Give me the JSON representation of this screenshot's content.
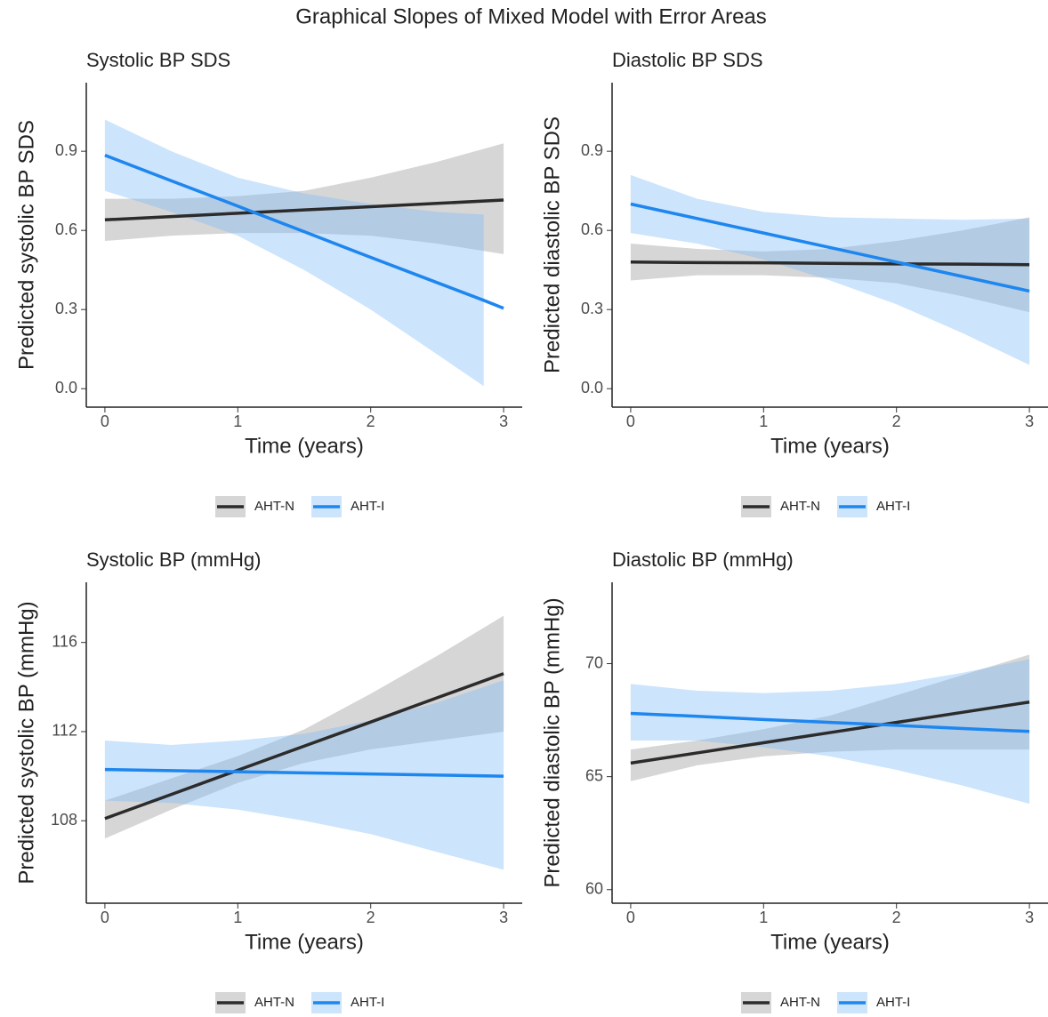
{
  "title": "Graphical Slopes of Mixed Model with Error Areas",
  "chart_data": [
    {
      "type": "line",
      "title": "Systolic BP SDS",
      "xlabel": "Time (years)",
      "ylabel": "Predicted systolic BP SDS",
      "xlim": [
        -0.14,
        3.14
      ],
      "ylim": [
        -0.07,
        1.16
      ],
      "xticks": [
        0,
        1,
        2,
        3
      ],
      "yticks": [
        {
          "value": 0,
          "label": "0.0"
        },
        0.3,
        0.6,
        0.9
      ],
      "legend": "bottom",
      "series": [
        {
          "name": "AHT-N",
          "color": "#2b2b2b",
          "fill": "#999999",
          "x": [
            0,
            0.5,
            1,
            1.5,
            2,
            2.5,
            3
          ],
          "values": [
            0.64,
            0.6525,
            0.665,
            0.6775,
            0.69,
            0.7025,
            0.715
          ],
          "lower": [
            0.56,
            0.58,
            0.59,
            0.59,
            0.58,
            0.55,
            0.51
          ],
          "upper": [
            0.72,
            0.72,
            0.73,
            0.75,
            0.8,
            0.86,
            0.93
          ]
        },
        {
          "name": "AHT-I",
          "color": "#1e86ef",
          "fill": "#80bbf8",
          "x": [
            0,
            0.5,
            1,
            1.5,
            2,
            2.5,
            2.85,
            3
          ],
          "values": [
            0.885,
            0.788,
            0.692,
            0.595,
            0.498,
            0.402,
            0.335,
            0.305
          ],
          "lower": [
            0.75,
            0.67,
            0.58,
            0.45,
            0.3,
            0.13,
            0.01,
            null
          ],
          "upper": [
            1.02,
            0.9,
            0.8,
            0.74,
            0.7,
            0.67,
            0.66,
            null
          ]
        }
      ]
    },
    {
      "type": "line",
      "title": "Diastolic BP SDS",
      "xlabel": "Time (years)",
      "ylabel": "Predicted diastolic BP SDS",
      "xlim": [
        -0.14,
        3.14
      ],
      "ylim": [
        -0.07,
        1.16
      ],
      "xticks": [
        0,
        1,
        2,
        3
      ],
      "yticks": [
        {
          "value": 0,
          "label": "0.0"
        },
        0.3,
        0.6,
        0.9
      ],
      "legend": "bottom",
      "series": [
        {
          "name": "AHT-N",
          "color": "#2b2b2b",
          "fill": "#999999",
          "x": [
            0,
            0.5,
            1,
            1.5,
            2,
            2.5,
            3
          ],
          "values": [
            0.48,
            0.478,
            0.477,
            0.475,
            0.473,
            0.472,
            0.47
          ],
          "lower": [
            0.41,
            0.43,
            0.43,
            0.42,
            0.4,
            0.35,
            0.29
          ],
          "upper": [
            0.55,
            0.53,
            0.52,
            0.53,
            0.56,
            0.6,
            0.65
          ]
        },
        {
          "name": "AHT-I",
          "color": "#1e86ef",
          "fill": "#80bbf8",
          "x": [
            0,
            0.5,
            1,
            1.5,
            2,
            2.5,
            3
          ],
          "values": [
            0.7,
            0.645,
            0.59,
            0.535,
            0.48,
            0.425,
            0.37
          ],
          "lower": [
            0.59,
            0.55,
            0.49,
            0.41,
            0.32,
            0.21,
            0.09
          ],
          "upper": [
            0.81,
            0.72,
            0.67,
            0.65,
            0.645,
            0.64,
            0.645
          ]
        }
      ]
    },
    {
      "type": "line",
      "title": "Systolic BP (mmHg)",
      "xlabel": "Time (years)",
      "ylabel": "Predicted systolic BP (mmHg)",
      "xlim": [
        -0.14,
        3.14
      ],
      "ylim": [
        104.3,
        118.7
      ],
      "xticks": [
        0,
        1,
        2,
        3
      ],
      "yticks": [
        108,
        112,
        116
      ],
      "legend": "bottom",
      "series": [
        {
          "name": "AHT-N",
          "color": "#2b2b2b",
          "fill": "#999999",
          "x": [
            0,
            0.5,
            1,
            1.5,
            2,
            2.5,
            3
          ],
          "values": [
            108.1,
            109.18,
            110.27,
            111.35,
            112.43,
            113.52,
            114.6
          ],
          "lower": [
            107.2,
            108.5,
            109.7,
            110.6,
            111.2,
            111.6,
            112.0
          ],
          "upper": [
            108.9,
            109.9,
            110.9,
            112.1,
            113.7,
            115.4,
            117.2
          ]
        },
        {
          "name": "AHT-I",
          "color": "#1e86ef",
          "fill": "#80bbf8",
          "x": [
            0,
            0.5,
            1,
            1.5,
            2,
            2.5,
            3
          ],
          "values": [
            110.3,
            110.25,
            110.2,
            110.15,
            110.1,
            110.05,
            110.0
          ],
          "lower": [
            108.9,
            108.8,
            108.5,
            108.0,
            107.4,
            106.6,
            105.8
          ],
          "upper": [
            111.6,
            111.4,
            111.6,
            111.9,
            112.5,
            113.3,
            114.3
          ]
        }
      ]
    },
    {
      "type": "line",
      "title": "Diastolic BP (mmHg)",
      "xlabel": "Time (years)",
      "ylabel": "Predicted diastolic BP (mmHg)",
      "xlim": [
        -0.14,
        3.14
      ],
      "ylim": [
        59.4,
        73.6
      ],
      "xticks": [
        0,
        1,
        2,
        3
      ],
      "yticks": [
        60,
        65,
        70
      ],
      "legend": "bottom",
      "series": [
        {
          "name": "AHT-N",
          "color": "#2b2b2b",
          "fill": "#999999",
          "x": [
            0,
            0.5,
            1,
            1.5,
            2,
            2.5,
            3
          ],
          "values": [
            65.6,
            66.05,
            66.5,
            66.95,
            67.4,
            67.85,
            68.3
          ],
          "lower": [
            64.8,
            65.5,
            65.9,
            66.1,
            66.2,
            66.2,
            66.2
          ],
          "upper": [
            66.2,
            66.6,
            67.1,
            67.7,
            68.6,
            69.5,
            70.4
          ]
        },
        {
          "name": "AHT-I",
          "color": "#1e86ef",
          "fill": "#80bbf8",
          "x": [
            0,
            0.5,
            1,
            1.5,
            2,
            2.5,
            3
          ],
          "values": [
            67.8,
            67.67,
            67.53,
            67.4,
            67.27,
            67.13,
            67.0
          ],
          "lower": [
            66.6,
            66.6,
            66.3,
            65.9,
            65.3,
            64.6,
            63.8
          ],
          "upper": [
            69.1,
            68.8,
            68.7,
            68.8,
            69.1,
            69.6,
            70.2
          ]
        }
      ]
    }
  ]
}
